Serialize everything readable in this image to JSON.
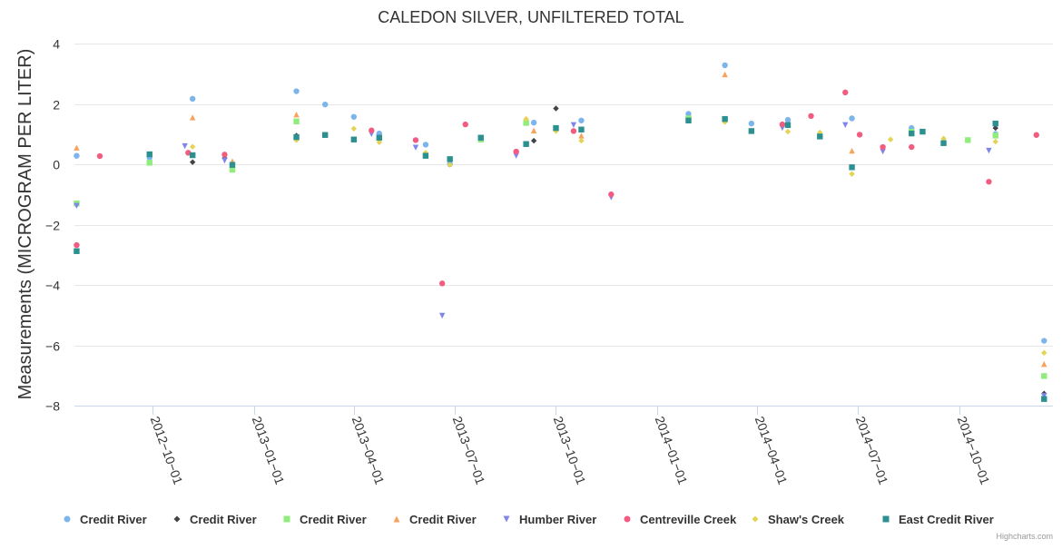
{
  "credits": "Highcharts.com",
  "chart_data": {
    "type": "scatter",
    "title": "CALEDON SILVER, UNFILTERED TOTAL",
    "ylabel": "Measurements (MICROGRAM PER LITER)",
    "xlabel": "",
    "ylim": [
      -8,
      4
    ],
    "yticks": [
      -8,
      -6,
      -4,
      -2,
      0,
      2,
      4
    ],
    "xlim": [
      "2012-07-22",
      "2014-12-25"
    ],
    "xticks": [
      "2012-10-01",
      "2013-01-01",
      "2013-04-01",
      "2013-07-01",
      "2013-10-01",
      "2014-01-01",
      "2014-04-01",
      "2014-07-01",
      "2014-10-01"
    ],
    "legend_position": "bottom",
    "series": [
      {
        "name": "Credit River",
        "color": "#7cb5ec",
        "marker": "circle",
        "points": [
          [
            "2012-07-24",
            0.28
          ],
          [
            "2012-09-28",
            0.22
          ],
          [
            "2012-11-06",
            2.17
          ],
          [
            "2013-02-08",
            2.42
          ],
          [
            "2013-03-06",
            1.98
          ],
          [
            "2013-04-01",
            1.57
          ],
          [
            "2013-04-24",
            1.02
          ],
          [
            "2013-06-05",
            0.65
          ],
          [
            "2013-06-27",
            0.0
          ],
          [
            "2013-09-11",
            1.38
          ],
          [
            "2013-10-24",
            1.45
          ],
          [
            "2014-01-29",
            1.67
          ],
          [
            "2014-03-03",
            3.28
          ],
          [
            "2014-03-27",
            1.35
          ],
          [
            "2014-04-29",
            1.47
          ],
          [
            "2014-06-26",
            1.52
          ],
          [
            "2014-08-19",
            1.2
          ],
          [
            "2014-11-03",
            1.0
          ],
          [
            "2014-12-17",
            -5.85
          ]
        ]
      },
      {
        "name": "Credit River",
        "color": "#434348",
        "marker": "diamond",
        "points": [
          [
            "2012-11-06",
            0.07
          ],
          [
            "2012-12-05",
            0.2
          ],
          [
            "2013-02-08",
            0.95
          ],
          [
            "2013-09-11",
            0.78
          ],
          [
            "2013-10-01",
            1.85
          ],
          [
            "2014-11-03",
            1.2
          ],
          [
            "2014-12-17",
            -7.6
          ]
        ]
      },
      {
        "name": "Credit River",
        "color": "#90ed7d",
        "marker": "square",
        "points": [
          [
            "2012-07-24",
            -1.3
          ],
          [
            "2012-09-28",
            0.05
          ],
          [
            "2012-12-12",
            -0.18
          ],
          [
            "2013-02-08",
            1.42
          ],
          [
            "2013-07-25",
            0.82
          ],
          [
            "2013-09-04",
            1.37
          ],
          [
            "2014-01-29",
            1.52
          ],
          [
            "2014-08-19",
            1.08
          ],
          [
            "2014-10-09",
            0.8
          ],
          [
            "2014-11-03",
            0.95
          ],
          [
            "2014-12-17",
            -7.02
          ]
        ]
      },
      {
        "name": "Credit River",
        "color": "#f7a35c",
        "marker": "triangle",
        "points": [
          [
            "2012-07-24",
            0.55
          ],
          [
            "2012-11-06",
            1.55
          ],
          [
            "2012-12-12",
            0.1
          ],
          [
            "2013-02-08",
            1.65
          ],
          [
            "2013-09-11",
            1.12
          ],
          [
            "2013-10-24",
            0.95
          ],
          [
            "2014-03-03",
            2.98
          ],
          [
            "2014-06-26",
            0.45
          ],
          [
            "2014-12-17",
            -6.62
          ]
        ]
      },
      {
        "name": "Humber River",
        "color": "#8085e9",
        "marker": "triangle-down",
        "points": [
          [
            "2012-07-24",
            -1.38
          ],
          [
            "2012-10-30",
            0.6
          ],
          [
            "2012-12-05",
            0.12
          ],
          [
            "2013-04-17",
            1.0
          ],
          [
            "2013-05-27",
            0.55
          ],
          [
            "2013-06-20",
            -5.02
          ],
          [
            "2013-08-26",
            0.28
          ],
          [
            "2013-10-17",
            1.3
          ],
          [
            "2013-11-20",
            -1.1
          ],
          [
            "2014-04-24",
            1.2
          ],
          [
            "2014-06-20",
            1.3
          ],
          [
            "2014-07-24",
            0.42
          ],
          [
            "2014-10-28",
            0.45
          ],
          [
            "2014-12-17",
            -7.68
          ]
        ]
      },
      {
        "name": "Centreville Creek",
        "color": "#f15c80",
        "marker": "circle",
        "points": [
          [
            "2012-07-24",
            -2.68
          ],
          [
            "2012-08-14",
            0.27
          ],
          [
            "2012-11-02",
            0.38
          ],
          [
            "2012-12-05",
            0.32
          ],
          [
            "2013-04-17",
            1.12
          ],
          [
            "2013-05-27",
            0.8
          ],
          [
            "2013-06-20",
            -3.95
          ],
          [
            "2013-07-11",
            1.32
          ],
          [
            "2013-08-26",
            0.42
          ],
          [
            "2013-10-17",
            1.1
          ],
          [
            "2013-11-20",
            -1.0
          ],
          [
            "2014-04-24",
            1.32
          ],
          [
            "2014-05-20",
            1.6
          ],
          [
            "2014-06-20",
            2.38
          ],
          [
            "2014-07-03",
            0.98
          ],
          [
            "2014-07-24",
            0.57
          ],
          [
            "2014-08-19",
            0.57
          ],
          [
            "2014-10-28",
            -0.58
          ],
          [
            "2014-12-10",
            0.97
          ]
        ]
      },
      {
        "name": "Shaw's Creek",
        "color": "#e4d354",
        "marker": "diamond",
        "points": [
          [
            "2012-11-06",
            0.58
          ],
          [
            "2013-02-08",
            0.8
          ],
          [
            "2013-04-01",
            1.18
          ],
          [
            "2013-04-24",
            0.73
          ],
          [
            "2013-06-05",
            0.38
          ],
          [
            "2013-06-27",
            -0.02
          ],
          [
            "2013-09-04",
            1.5
          ],
          [
            "2013-10-01",
            1.1
          ],
          [
            "2013-10-24",
            0.78
          ],
          [
            "2014-03-03",
            1.4
          ],
          [
            "2014-04-29",
            1.08
          ],
          [
            "2014-05-28",
            1.05
          ],
          [
            "2014-06-26",
            -0.32
          ],
          [
            "2014-07-31",
            0.82
          ],
          [
            "2014-09-17",
            0.85
          ],
          [
            "2014-11-03",
            0.75
          ],
          [
            "2014-12-17",
            -6.25
          ]
        ]
      },
      {
        "name": "East Credit River",
        "color": "#2b908f",
        "marker": "square",
        "points": [
          [
            "2012-07-24",
            -2.88
          ],
          [
            "2012-09-28",
            0.33
          ],
          [
            "2012-11-06",
            0.3
          ],
          [
            "2012-12-12",
            -0.02
          ],
          [
            "2013-02-08",
            0.9
          ],
          [
            "2013-03-06",
            0.97
          ],
          [
            "2013-04-01",
            0.82
          ],
          [
            "2013-04-24",
            0.88
          ],
          [
            "2013-06-05",
            0.28
          ],
          [
            "2013-06-27",
            0.17
          ],
          [
            "2013-07-25",
            0.88
          ],
          [
            "2013-09-04",
            0.67
          ],
          [
            "2013-10-01",
            1.2
          ],
          [
            "2013-10-24",
            1.15
          ],
          [
            "2014-01-29",
            1.45
          ],
          [
            "2014-03-03",
            1.5
          ],
          [
            "2014-03-27",
            1.1
          ],
          [
            "2014-04-29",
            1.3
          ],
          [
            "2014-05-28",
            0.92
          ],
          [
            "2014-06-26",
            -0.1
          ],
          [
            "2014-08-19",
            1.02
          ],
          [
            "2014-08-29",
            1.08
          ],
          [
            "2014-09-17",
            0.7
          ],
          [
            "2014-11-03",
            1.35
          ],
          [
            "2014-12-17",
            -7.78
          ]
        ]
      }
    ]
  }
}
